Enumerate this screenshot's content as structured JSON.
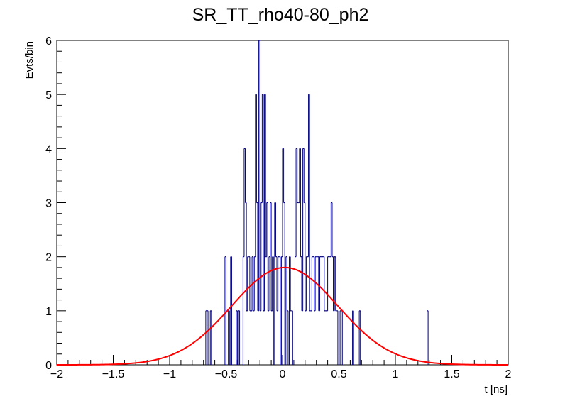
{
  "chart_data": {
    "type": "histogram",
    "title": "SR_TT_rho40-80_ph2",
    "xlabel": "t [ns]",
    "ylabel": "Evts/bin",
    "xlim": [
      -2,
      2
    ],
    "ylim": [
      0,
      6
    ],
    "x_ticks": [
      -2,
      -1.5,
      -1,
      -0.5,
      0,
      0.5,
      1,
      1.5,
      2
    ],
    "x_tick_labels": [
      "−2",
      "−1.5",
      "−1",
      "−0.5",
      "0",
      "0.5",
      "1",
      "1.5",
      "2"
    ],
    "y_ticks": [
      0,
      1,
      2,
      3,
      4,
      5,
      6
    ],
    "y_tick_labels": [
      "0",
      "1",
      "2",
      "3",
      "4",
      "5",
      "6"
    ],
    "bin_width": 0.01,
    "histogram": {
      "name": "data",
      "color": "#000080",
      "bins": [
        [
          -0.68,
          1
        ],
        [
          -0.67,
          1
        ],
        [
          -0.64,
          1
        ],
        [
          -0.51,
          2
        ],
        [
          -0.48,
          1
        ],
        [
          -0.46,
          2
        ],
        [
          -0.41,
          1
        ],
        [
          -0.39,
          1
        ],
        [
          -0.35,
          2
        ],
        [
          -0.34,
          4
        ],
        [
          -0.33,
          3
        ],
        [
          -0.32,
          1
        ],
        [
          -0.31,
          2
        ],
        [
          -0.3,
          2
        ],
        [
          -0.29,
          1
        ],
        [
          -0.28,
          1
        ],
        [
          -0.27,
          2
        ],
        [
          -0.26,
          1
        ],
        [
          -0.25,
          2
        ],
        [
          -0.24,
          5
        ],
        [
          -0.23,
          3
        ],
        [
          -0.22,
          1
        ],
        [
          -0.21,
          6
        ],
        [
          -0.2,
          1
        ],
        [
          -0.19,
          3
        ],
        [
          -0.18,
          5
        ],
        [
          -0.17,
          1
        ],
        [
          -0.16,
          5
        ],
        [
          -0.15,
          2
        ],
        [
          -0.14,
          3
        ],
        [
          -0.13,
          1
        ],
        [
          -0.12,
          2
        ],
        [
          -0.11,
          3
        ],
        [
          -0.1,
          1
        ],
        [
          -0.09,
          2
        ],
        [
          -0.07,
          3
        ],
        [
          -0.06,
          2
        ],
        [
          -0.05,
          1
        ],
        [
          -0.04,
          2
        ],
        [
          -0.03,
          2
        ],
        [
          -0.01,
          2
        ],
        [
          0.0,
          4
        ],
        [
          0.01,
          3
        ],
        [
          0.03,
          2
        ],
        [
          0.04,
          1
        ],
        [
          0.06,
          2
        ],
        [
          0.07,
          1
        ],
        [
          0.08,
          1
        ],
        [
          0.11,
          2
        ],
        [
          0.12,
          4
        ],
        [
          0.13,
          3
        ],
        [
          0.14,
          3
        ],
        [
          0.15,
          4
        ],
        [
          0.16,
          2
        ],
        [
          0.17,
          1
        ],
        [
          0.18,
          4
        ],
        [
          0.19,
          3
        ],
        [
          0.2,
          1
        ],
        [
          0.21,
          2
        ],
        [
          0.22,
          2
        ],
        [
          0.23,
          5
        ],
        [
          0.24,
          1
        ],
        [
          0.25,
          1
        ],
        [
          0.26,
          2
        ],
        [
          0.27,
          2
        ],
        [
          0.28,
          1
        ],
        [
          0.29,
          2
        ],
        [
          0.3,
          2
        ],
        [
          0.31,
          2
        ],
        [
          0.32,
          1
        ],
        [
          0.33,
          2
        ],
        [
          0.34,
          2
        ],
        [
          0.35,
          2
        ],
        [
          0.36,
          2
        ],
        [
          0.37,
          1
        ],
        [
          0.38,
          1
        ],
        [
          0.39,
          1
        ],
        [
          0.4,
          2
        ],
        [
          0.41,
          2
        ],
        [
          0.42,
          2
        ],
        [
          0.43,
          3
        ],
        [
          0.44,
          2
        ],
        [
          0.45,
          1
        ],
        [
          0.46,
          2
        ],
        [
          0.47,
          1
        ],
        [
          0.48,
          1
        ],
        [
          0.51,
          1
        ],
        [
          0.52,
          1
        ],
        [
          0.62,
          1
        ],
        [
          0.68,
          1
        ],
        [
          1.28,
          1
        ]
      ]
    },
    "fit": {
      "name": "gaussian fit",
      "function": "gaus",
      "color": "#ff0000",
      "constant": 1.8,
      "mean": 0.02,
      "sigma": 0.47
    }
  }
}
